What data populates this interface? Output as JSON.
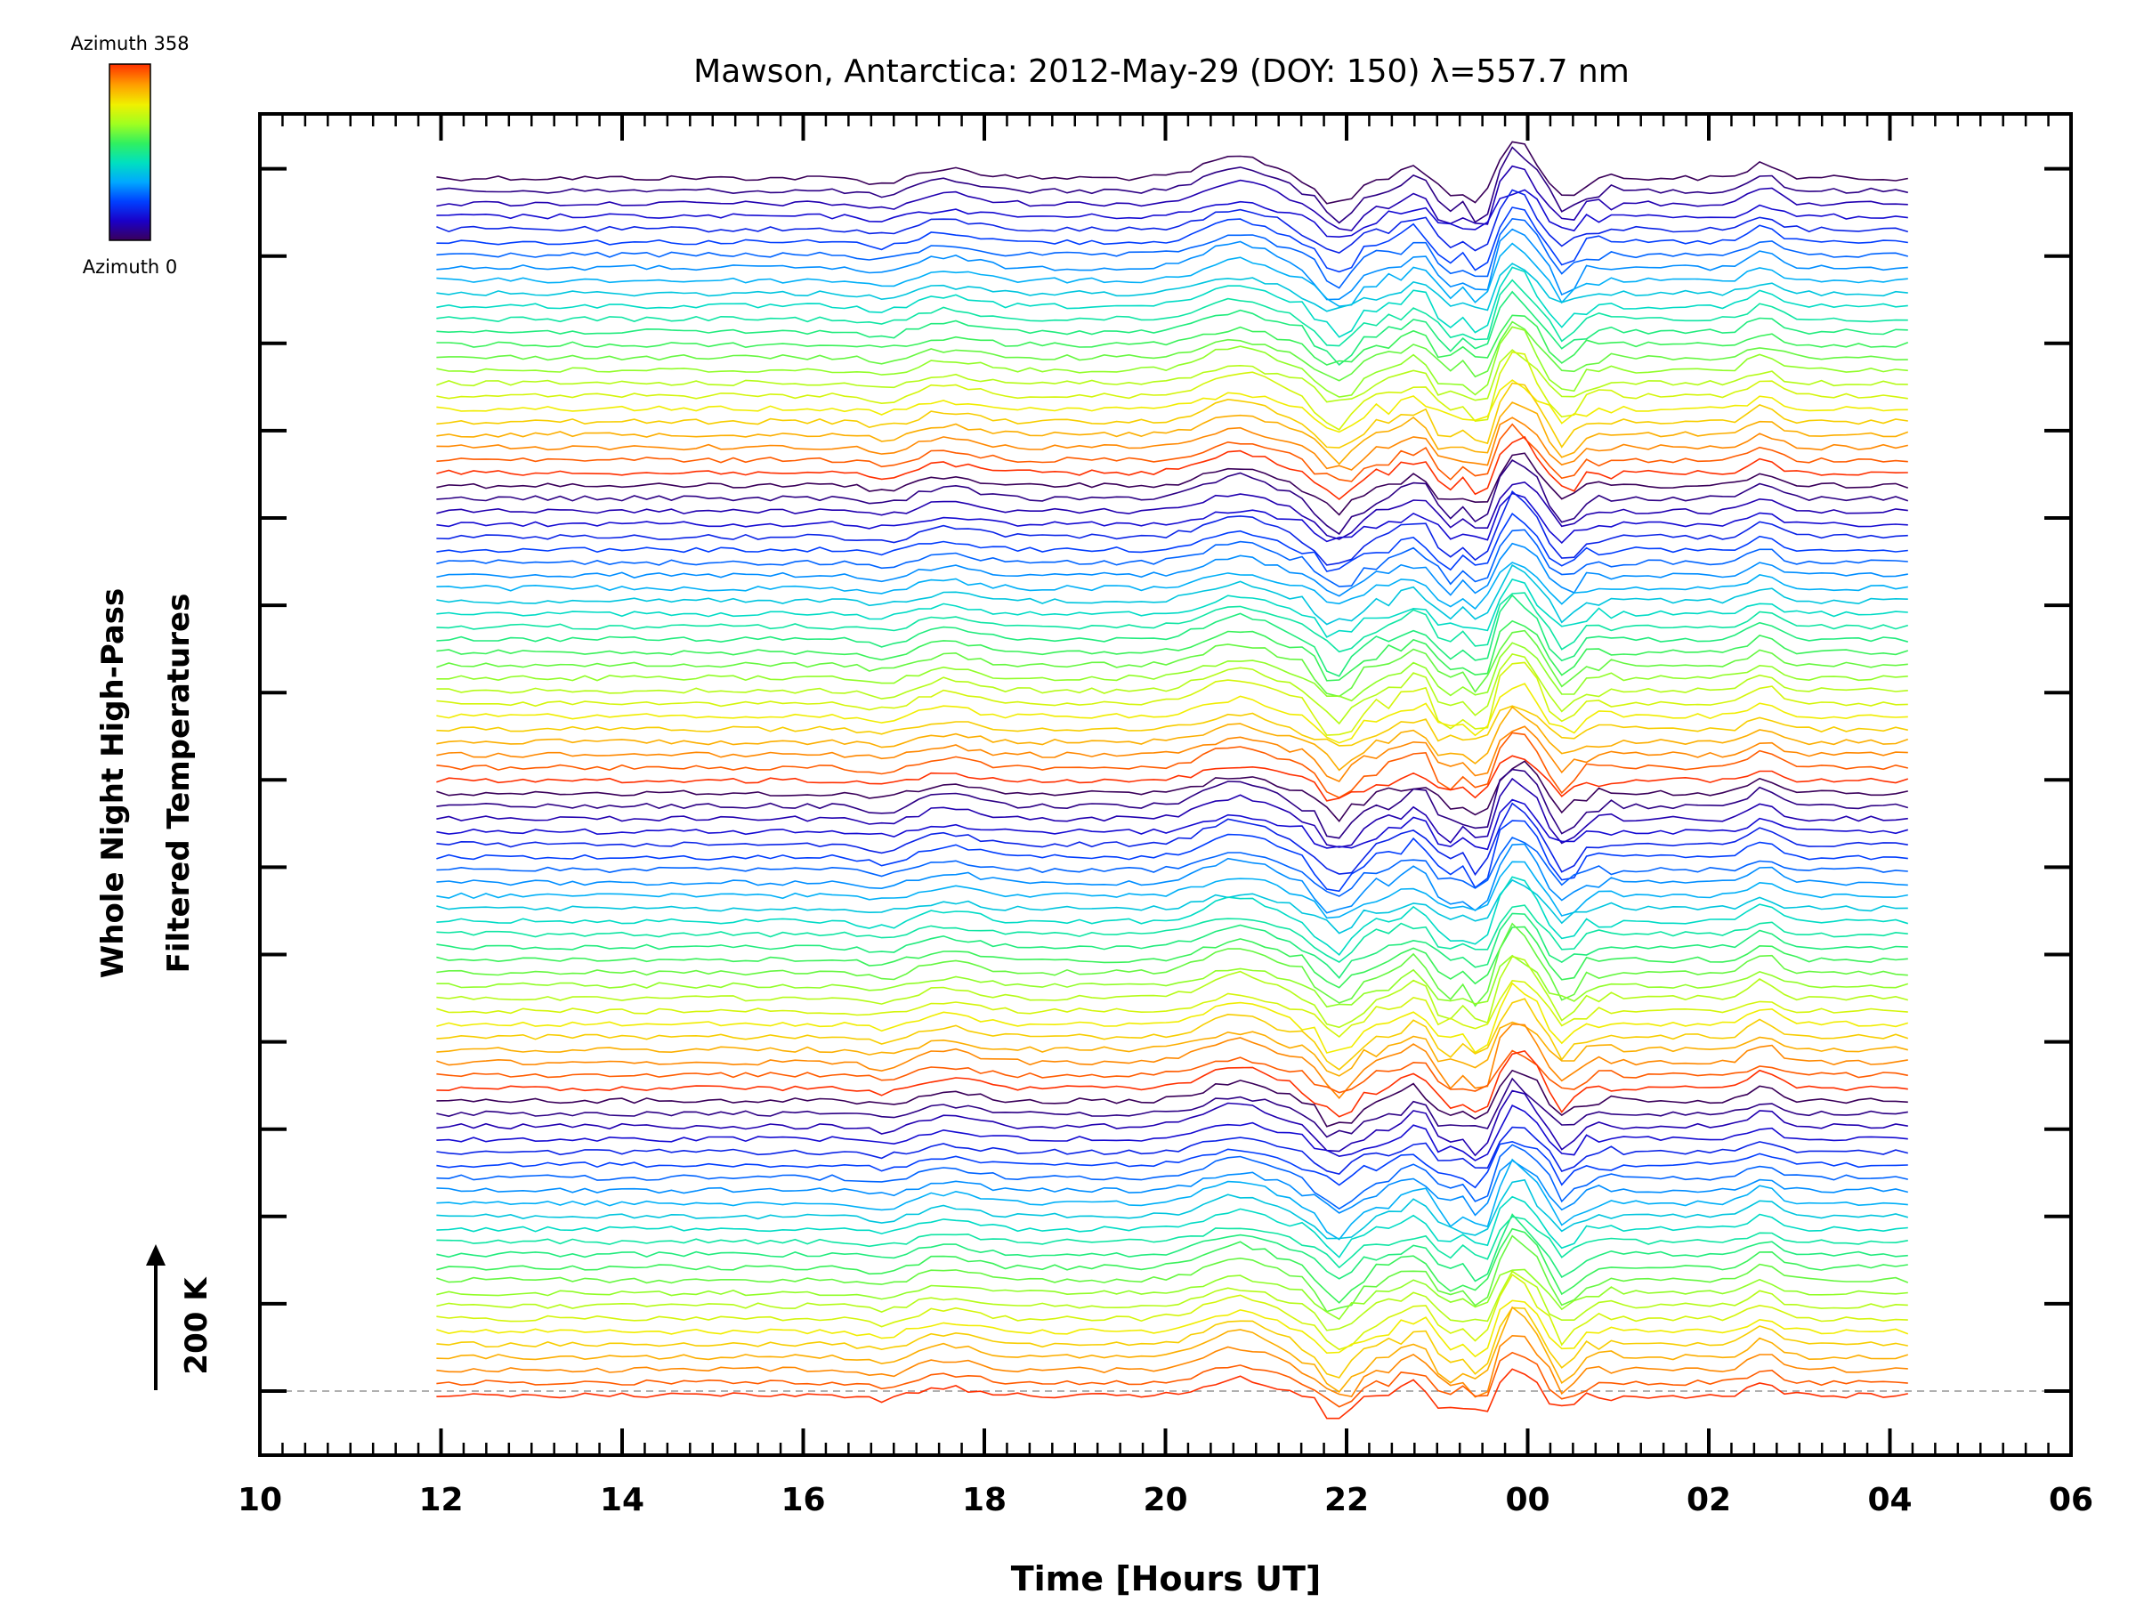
{
  "chart_data": {
    "type": "line",
    "title": "Mawson, Antarctica: 2012-May-29 (DOY: 150) λ=557.7 nm",
    "xlabel": "Time [Hours UT]",
    "ylabel_line1": "Whole Night High-Pass",
    "ylabel_line2": "Filtered Temperatures",
    "x_tick_labels": [
      "10",
      "12",
      "14",
      "16",
      "18",
      "20",
      "22",
      "00",
      "02",
      "04",
      "06"
    ],
    "x_tick_hours": [
      10,
      12,
      14,
      16,
      18,
      20,
      22,
      24,
      26,
      28,
      30
    ],
    "xlim_hours": [
      10,
      30
    ],
    "scale_bar_label": "200 K",
    "colorbar": {
      "top_label": "Azimuth 358",
      "bottom_label": "Azimuth 0",
      "stops": [
        "#3a005a",
        "#1a00c8",
        "#0040ff",
        "#00a8ff",
        "#00e0c0",
        "#30f060",
        "#a0ff20",
        "#f0f000",
        "#ffa000",
        "#ff3000"
      ]
    },
    "series_summary": {
      "n_traces": 96,
      "start_hour_ut": 11.95,
      "end_hour_ut": 28.2,
      "azimuth_range_deg": [
        0,
        358
      ],
      "note": "Traces are stacked vertically by sequence; colour encodes azimuth"
    },
    "grid": false,
    "legend": "colorbar top-left"
  }
}
